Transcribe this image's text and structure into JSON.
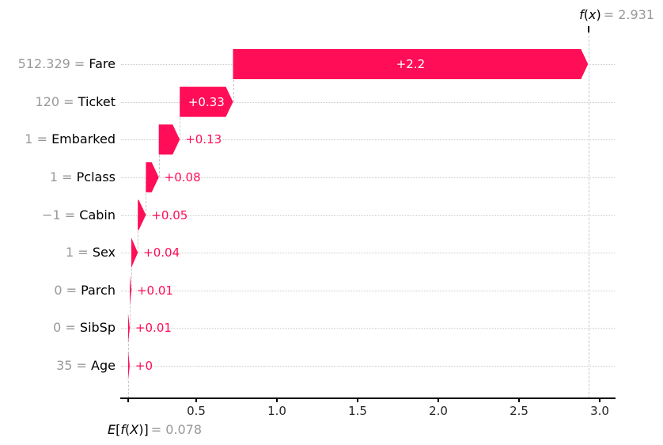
{
  "chart_data": {
    "type": "waterfall",
    "style": "shap-waterfall",
    "title": "",
    "xlabel": "",
    "ylabel": "",
    "fx_label": "f(x)",
    "fx_value": 2.931,
    "fx_value_text": "= 2.931",
    "base_label": "E[f(X)]",
    "base_value": 0.078,
    "base_value_text": "= 0.078",
    "x_ticks": [
      0.5,
      1.0,
      1.5,
      2.0,
      2.5,
      3.0
    ],
    "x_tick_labels": [
      "0.5",
      "1.0",
      "1.5",
      "2.0",
      "2.5",
      "3.0"
    ],
    "xlim": [
      0.034,
      3.09
    ],
    "grid": "horizontal-dotted",
    "legend": "none",
    "rows": [
      {
        "feature": "Fare",
        "feature_value": "512.329",
        "contribution": 2.2,
        "label": "+2.2",
        "label_inside": true
      },
      {
        "feature": "Ticket",
        "feature_value": "120",
        "contribution": 0.33,
        "label": "+0.33",
        "label_inside": true
      },
      {
        "feature": "Embarked",
        "feature_value": "1",
        "contribution": 0.13,
        "label": "+0.13",
        "label_inside": false
      },
      {
        "feature": "Pclass",
        "feature_value": "1",
        "contribution": 0.08,
        "label": "+0.08",
        "label_inside": false
      },
      {
        "feature": "Cabin",
        "feature_value": "−1",
        "contribution": 0.05,
        "label": "+0.05",
        "label_inside": false
      },
      {
        "feature": "Sex",
        "feature_value": "1",
        "contribution": 0.04,
        "label": "+0.04",
        "label_inside": false
      },
      {
        "feature": "Parch",
        "feature_value": "0",
        "contribution": 0.01,
        "label": "+0.01",
        "label_inside": false
      },
      {
        "feature": "SibSp",
        "feature_value": "0",
        "contribution": 0.01,
        "label": "+0.01",
        "label_inside": false
      },
      {
        "feature": "Age",
        "feature_value": "35",
        "contribution": 0.0,
        "label": "+0",
        "label_inside": false
      }
    ],
    "colors": {
      "positive_bar": "#ff0d57",
      "value_text_gray": "#999999",
      "feature_text": "#000000",
      "inside_label": "#ffffff",
      "grid_line": "#cccccc",
      "connector_line": "#c9c9c9",
      "axis_line": "#000000",
      "tick_label": "#262626"
    }
  }
}
